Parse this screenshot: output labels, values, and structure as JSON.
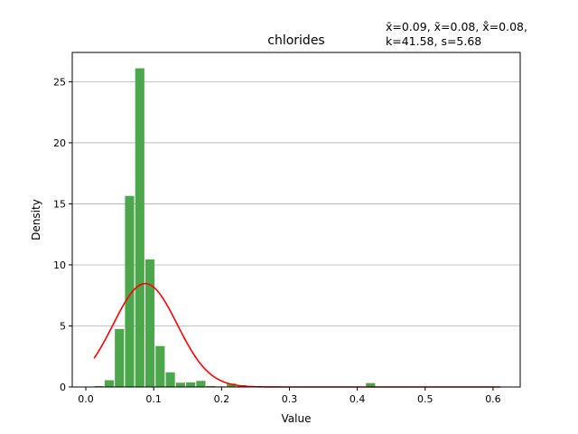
{
  "chart_data": {
    "type": "bar",
    "title": "chlorides",
    "annotation_lines": [
      "x̄=0.09, x̃=0.08, x̊=0.08,",
      "k=41.58, s=5.68"
    ],
    "xlabel": "Value",
    "ylabel": "Density",
    "xlim": [
      -0.02,
      0.64
    ],
    "ylim": [
      0,
      27.4
    ],
    "xticks": [
      0.0,
      0.1,
      0.2,
      0.3,
      0.4,
      0.5,
      0.6
    ],
    "xtick_labels": [
      "0.0",
      "0.1",
      "0.2",
      "0.3",
      "0.4",
      "0.5",
      "0.6"
    ],
    "yticks": [
      0,
      5,
      10,
      15,
      20,
      25
    ],
    "ytick_labels": [
      "0",
      "5",
      "10",
      "15",
      "20",
      "25"
    ],
    "grid": "y",
    "bar_color": "#4ca64c",
    "curve_color": "#ff0000",
    "bins": [
      {
        "x0": 0.012,
        "x1": 0.027,
        "density": 0.08
      },
      {
        "x0": 0.027,
        "x1": 0.042,
        "density": 0.55
      },
      {
        "x0": 0.042,
        "x1": 0.057,
        "density": 4.75
      },
      {
        "x0": 0.057,
        "x1": 0.072,
        "density": 15.65
      },
      {
        "x0": 0.072,
        "x1": 0.087,
        "density": 26.1
      },
      {
        "x0": 0.087,
        "x1": 0.102,
        "density": 10.45
      },
      {
        "x0": 0.102,
        "x1": 0.117,
        "density": 3.35
      },
      {
        "x0": 0.117,
        "x1": 0.132,
        "density": 1.2
      },
      {
        "x0": 0.132,
        "x1": 0.147,
        "density": 0.35
      },
      {
        "x0": 0.147,
        "x1": 0.162,
        "density": 0.38
      },
      {
        "x0": 0.162,
        "x1": 0.177,
        "density": 0.5
      },
      {
        "x0": 0.177,
        "x1": 0.192,
        "density": 0.08
      },
      {
        "x0": 0.192,
        "x1": 0.207,
        "density": 0.05
      },
      {
        "x0": 0.207,
        "x1": 0.222,
        "density": 0.28
      },
      {
        "x0": 0.222,
        "x1": 0.237,
        "density": 0.15
      },
      {
        "x0": 0.237,
        "x1": 0.252,
        "density": 0.05
      },
      {
        "x0": 0.252,
        "x1": 0.267,
        "density": 0.04
      },
      {
        "x0": 0.267,
        "x1": 0.282,
        "density": 0.03
      },
      {
        "x0": 0.282,
        "x1": 0.297,
        "density": 0.02
      },
      {
        "x0": 0.297,
        "x1": 0.312,
        "density": 0.02
      },
      {
        "x0": 0.312,
        "x1": 0.327,
        "density": 0.02
      },
      {
        "x0": 0.327,
        "x1": 0.342,
        "density": 0.02
      },
      {
        "x0": 0.342,
        "x1": 0.357,
        "density": 0.02
      },
      {
        "x0": 0.357,
        "x1": 0.372,
        "density": 0.02
      },
      {
        "x0": 0.372,
        "x1": 0.387,
        "density": 0.02
      },
      {
        "x0": 0.387,
        "x1": 0.402,
        "density": 0.02
      },
      {
        "x0": 0.412,
        "x1": 0.427,
        "density": 0.32
      },
      {
        "x0": 0.597,
        "x1": 0.612,
        "density": 0.02
      }
    ],
    "normal_curve": {
      "mean": 0.0875,
      "std": 0.0471,
      "x_range": [
        0.012,
        0.611
      ]
    }
  }
}
